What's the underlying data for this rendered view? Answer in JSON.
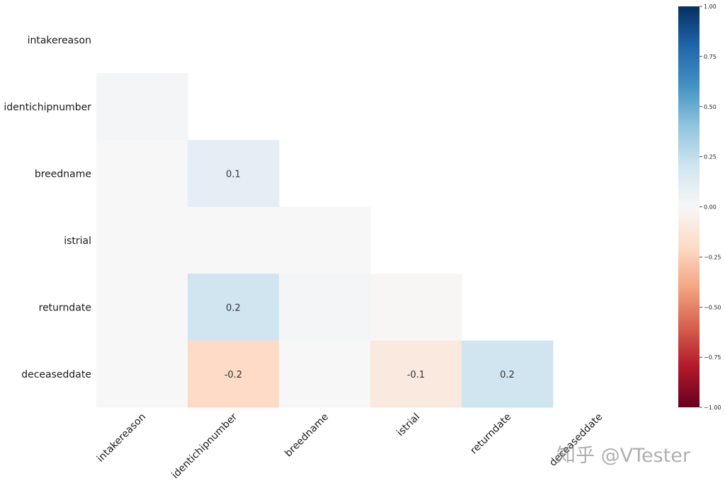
{
  "chart_data": {
    "type": "heatmap",
    "title": "",
    "mask": "upper-triangle-including-diagonal",
    "labels": [
      "intakereason",
      "identichipnumber",
      "breedname",
      "istrial",
      "returndate",
      "deceaseddate"
    ],
    "matrix": [
      [
        null,
        null,
        null,
        null,
        null,
        null
      ],
      [
        0.02,
        null,
        null,
        null,
        null,
        null
      ],
      [
        0.0,
        0.1,
        null,
        null,
        null,
        null
      ],
      [
        0.0,
        0.0,
        0.0,
        null,
        null,
        null
      ],
      [
        0.0,
        0.2,
        0.02,
        -0.01,
        null,
        null
      ],
      [
        0.0,
        -0.2,
        0.0,
        -0.1,
        0.2,
        null
      ]
    ],
    "annotations": [
      {
        "row": 2,
        "col": 1,
        "text": "0.1"
      },
      {
        "row": 4,
        "col": 1,
        "text": "0.2"
      },
      {
        "row": 5,
        "col": 1,
        "text": "-0.2"
      },
      {
        "row": 5,
        "col": 3,
        "text": "-0.1"
      },
      {
        "row": 5,
        "col": 4,
        "text": "0.2"
      }
    ],
    "colorbar": {
      "range": [
        -1.0,
        1.0
      ],
      "ticks": [
        "1.00",
        "0.75",
        "0.50",
        "0.25",
        "0.00",
        "−0.25",
        "−0.50",
        "−0.75",
        "−1.00"
      ],
      "tick_values": [
        1.0,
        0.75,
        0.5,
        0.25,
        0.0,
        -0.25,
        -0.5,
        -0.75,
        -1.0
      ],
      "colormap": "RdBu",
      "colors": [
        "#67001f",
        "#b2182b",
        "#d6604d",
        "#f4a582",
        "#fddbc7",
        "#f7f7f7",
        "#d1e5f0",
        "#92c5de",
        "#4393c3",
        "#2166ac",
        "#053061"
      ]
    }
  },
  "watermark": "知乎 @VTester"
}
